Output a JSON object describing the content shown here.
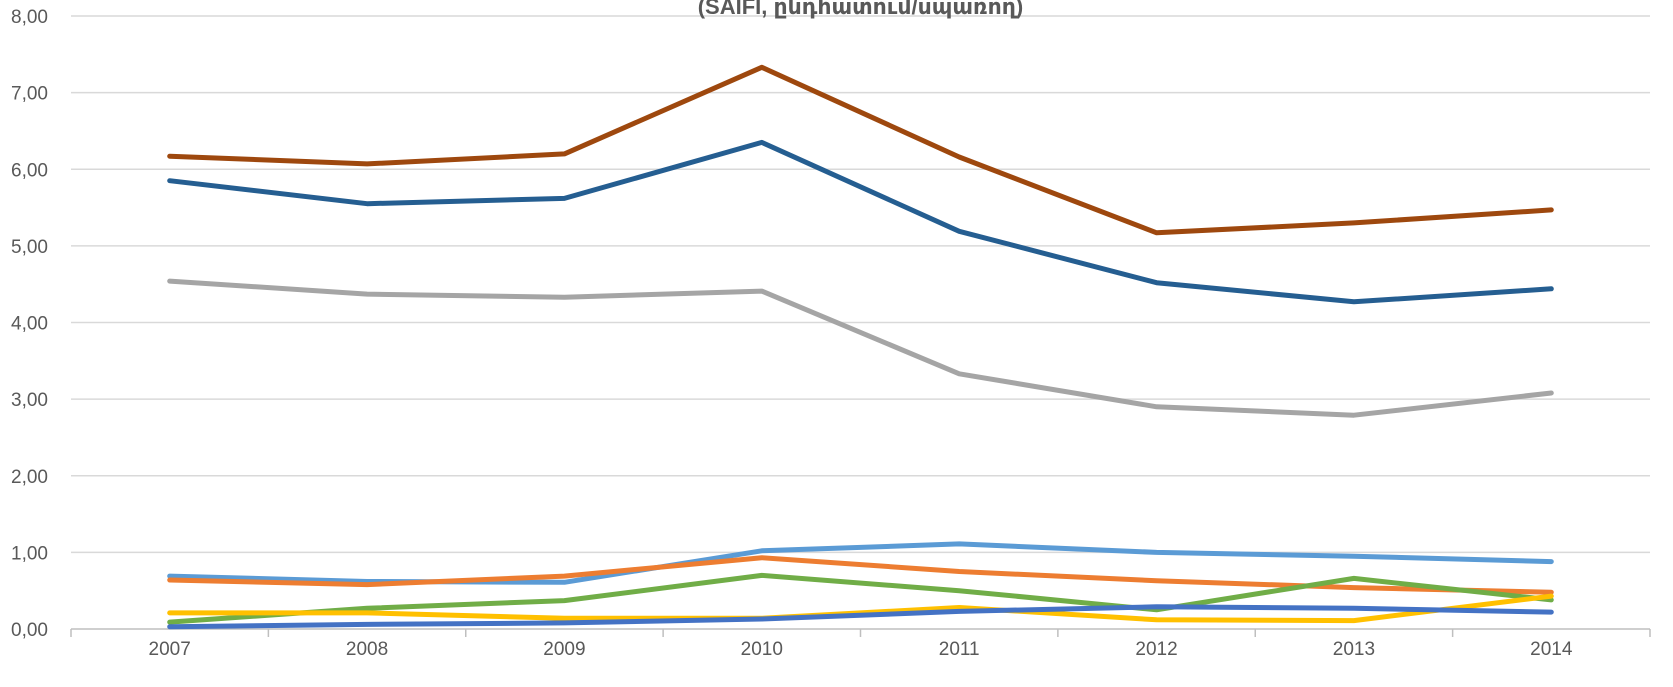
{
  "chart_data": {
    "type": "line",
    "title": "(SAIFI, ընդհատում/սպառող)",
    "categories": [
      "2007",
      "2008",
      "2009",
      "2010",
      "2011",
      "2012",
      "2013",
      "2014"
    ],
    "ylim": [
      0,
      8
    ],
    "y_ticks": [
      "0,00",
      "1,00",
      "2,00",
      "3,00",
      "4,00",
      "5,00",
      "6,00",
      "7,00",
      "8,00"
    ],
    "grid": true,
    "series": [
      {
        "color": "#9E480E",
        "values": [
          6.17,
          6.07,
          6.2,
          7.33,
          6.16,
          5.17,
          5.3,
          5.47
        ]
      },
      {
        "color": "#255E91",
        "values": [
          5.85,
          5.55,
          5.62,
          6.35,
          5.19,
          4.52,
          4.27,
          4.44
        ]
      },
      {
        "color": "#A5A5A5",
        "values": [
          4.54,
          4.37,
          4.33,
          4.41,
          3.33,
          2.9,
          2.79,
          3.08
        ]
      },
      {
        "color": "#5B9BD5",
        "values": [
          0.69,
          0.62,
          0.61,
          1.02,
          1.11,
          1.0,
          0.95,
          0.88
        ]
      },
      {
        "color": "#ED7D31",
        "values": [
          0.64,
          0.58,
          0.69,
          0.93,
          0.75,
          0.63,
          0.54,
          0.48
        ]
      },
      {
        "color": "#70AD47",
        "values": [
          0.09,
          0.27,
          0.37,
          0.7,
          0.5,
          0.25,
          0.66,
          0.38
        ]
      },
      {
        "color": "#FFC000",
        "values": [
          0.21,
          0.21,
          0.14,
          0.14,
          0.28,
          0.12,
          0.11,
          0.43
        ]
      },
      {
        "color": "#4472C4",
        "values": [
          0.03,
          0.06,
          0.08,
          0.13,
          0.23,
          0.29,
          0.27,
          0.22
        ]
      }
    ]
  }
}
